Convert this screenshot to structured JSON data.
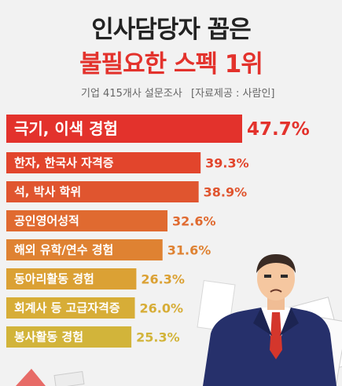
{
  "header": {
    "title_line1": "인사담당자 꼽은",
    "title_line2": "불필요한 스펙 1위",
    "survey_note": "기업 415개사 설문조사",
    "source_note": "[자료제공 : 사람인]"
  },
  "colors": {
    "accent": "#e3322c",
    "title": "#222222",
    "bar_top": "#e3322c",
    "bar_bottom": "#d2b43a"
  },
  "chart_data": {
    "type": "bar",
    "orientation": "horizontal",
    "categories": [
      "극기, 이색 경험",
      "한자, 한국사 자격증",
      "석, 박사 학위",
      "공인영어성적",
      "해외 유학/연수 경험",
      "동아리활동 경험",
      "회계사 등 고급자격증",
      "봉사활동 경험"
    ],
    "values": [
      47.7,
      39.3,
      38.9,
      32.6,
      31.6,
      26.3,
      26.0,
      25.3
    ],
    "value_labels": [
      "47.7%",
      "39.3%",
      "38.9%",
      "32.6%",
      "31.6%",
      "26.3%",
      "26.0%",
      "25.3%"
    ],
    "bar_colors": [
      "#e3322c",
      "#e2452c",
      "#e0552f",
      "#e06a30",
      "#df8232",
      "#dba134",
      "#d7ad37",
      "#d2b43a"
    ],
    "unit": "%",
    "title": "",
    "xlabel": "",
    "ylabel": "",
    "xlim": [
      0,
      50
    ]
  }
}
